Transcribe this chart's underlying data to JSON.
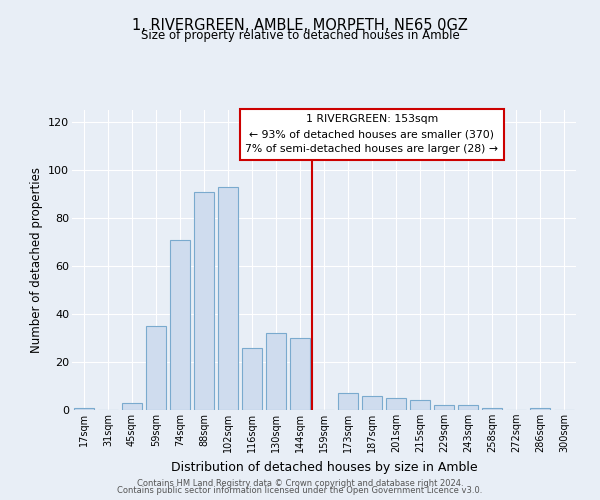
{
  "title": "1, RIVERGREEN, AMBLE, MORPETH, NE65 0GZ",
  "subtitle": "Size of property relative to detached houses in Amble",
  "xlabel": "Distribution of detached houses by size in Amble",
  "ylabel": "Number of detached properties",
  "bar_color": "#cfdcee",
  "bar_edge_color": "#7aaace",
  "background_color": "#e8eef6",
  "grid_color": "#ffffff",
  "annotation_box_color": "#cc0000",
  "annotation_line_color": "#cc0000",
  "annotation_title": "1 RIVERGREEN: 153sqm",
  "annotation_line1": "← 93% of detached houses are smaller (370)",
  "annotation_line2": "7% of semi-detached houses are larger (28) →",
  "bin_labels": [
    "17sqm",
    "31sqm",
    "45sqm",
    "59sqm",
    "74sqm",
    "88sqm",
    "102sqm",
    "116sqm",
    "130sqm",
    "144sqm",
    "159sqm",
    "173sqm",
    "187sqm",
    "201sqm",
    "215sqm",
    "229sqm",
    "243sqm",
    "258sqm",
    "272sqm",
    "286sqm",
    "300sqm"
  ],
  "counts": [
    1,
    0,
    3,
    35,
    71,
    91,
    93,
    26,
    32,
    30,
    0,
    7,
    6,
    5,
    4,
    2,
    2,
    1,
    0,
    1,
    0
  ],
  "n_bins": 21,
  "red_line_bin": 10,
  "ylim": [
    0,
    125
  ],
  "yticks": [
    0,
    20,
    40,
    60,
    80,
    100,
    120
  ],
  "footer1": "Contains HM Land Registry data © Crown copyright and database right 2024.",
  "footer2": "Contains public sector information licensed under the Open Government Licence v3.0."
}
